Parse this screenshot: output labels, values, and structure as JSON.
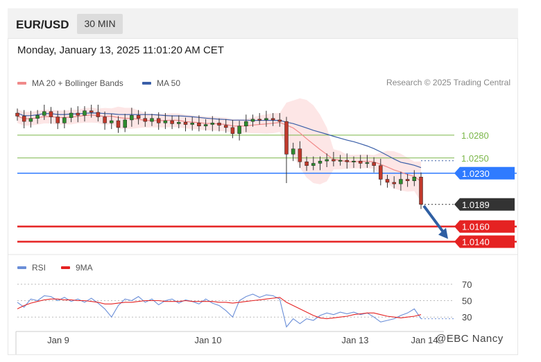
{
  "header": {
    "symbol": "EUR/USD",
    "timeframe": "30 MIN"
  },
  "datetime": "Monday, January 13, 2025 11:01:20 AM CET",
  "credit": "Research © 2025 Trading Central",
  "watermark": "@EBC Nancy",
  "colors": {
    "ma20": "#f08a8a",
    "bollinger_fill": "#fde2e2",
    "ma50": "#3a5fa8",
    "candle_up": "#2e8b2e",
    "candle_down": "#c0392b",
    "resistance": "#7ab648",
    "pivot": "#2f7bff",
    "support": "#e52222",
    "current": "#333333",
    "rsi": "#6b8fd8",
    "rsi_ma": "#e52222",
    "arrow": "#2f5fa3"
  },
  "chart_data": [
    {
      "type": "line",
      "subtype": "candlestick",
      "legend": [
        {
          "name": "MA 20 + Bollinger Bands",
          "color": "#f08a8a"
        },
        {
          "name": "MA 50",
          "color": "#3a5fa8"
        }
      ],
      "x_ticks": [
        "Jan 9",
        "Jan 10",
        "Jan 13",
        "Jan 14"
      ],
      "ylim": [
        1.0125,
        1.033
      ],
      "levels": [
        {
          "label": "1.0280",
          "value": 1.028,
          "kind": "resistance"
        },
        {
          "label": "1.0250",
          "value": 1.025,
          "kind": "resistance"
        },
        {
          "label": "1.0230",
          "value": 1.023,
          "kind": "pivot"
        },
        {
          "label": "1.0189",
          "value": 1.0189,
          "kind": "current"
        },
        {
          "label": "1.0160",
          "value": 1.016,
          "kind": "support"
        },
        {
          "label": "1.0140",
          "value": 1.014,
          "kind": "support"
        }
      ],
      "close_path": [
        1.0305,
        1.0298,
        1.0302,
        1.0306,
        1.0311,
        1.0304,
        1.0296,
        1.0303,
        1.0309,
        1.0306,
        1.0312,
        1.031,
        1.0304,
        1.0296,
        1.0299,
        1.029,
        1.03,
        1.0306,
        1.0302,
        1.0298,
        1.0302,
        1.0296,
        1.0299,
        1.0295,
        1.0297,
        1.0294,
        1.0296,
        1.0292,
        1.0294,
        1.0296,
        1.0293,
        1.029,
        1.0282,
        1.0292,
        1.0298,
        1.0301,
        1.03,
        1.0302,
        1.03,
        1.0298,
        1.0255,
        1.0262,
        1.0245,
        1.024,
        1.0243,
        1.0246,
        1.0248,
        1.0246,
        1.0247,
        1.0245,
        1.0246,
        1.0243,
        1.0244,
        1.024,
        1.0222,
        1.0218,
        1.0216,
        1.0222,
        1.022,
        1.0225,
        1.0189
      ]
    },
    {
      "type": "line",
      "legend": [
        {
          "name": "RSI",
          "color": "#6b8fd8"
        },
        {
          "name": "9MA",
          "color": "#e52222"
        }
      ],
      "y_ticks": [
        70,
        50,
        30
      ],
      "ylim": [
        15,
        80
      ],
      "rsi": [
        48,
        42,
        52,
        50,
        56,
        55,
        50,
        54,
        49,
        52,
        48,
        53,
        47,
        40,
        30,
        44,
        52,
        50,
        55,
        48,
        52,
        45,
        50,
        52,
        47,
        51,
        49,
        46,
        52,
        47,
        44,
        38,
        30,
        50,
        55,
        58,
        54,
        57,
        56,
        52,
        18,
        28,
        22,
        28,
        26,
        32,
        35,
        33,
        36,
        34,
        36,
        33,
        35,
        30,
        24,
        26,
        28,
        32,
        35,
        40,
        28
      ],
      "rsi_ma": [
        40,
        44,
        47,
        49,
        51,
        52,
        52,
        51,
        51,
        50,
        50,
        49,
        48,
        46,
        46,
        47,
        48,
        48,
        49,
        50,
        50,
        50,
        49,
        49,
        49,
        50,
        49,
        49,
        49,
        49,
        48,
        48,
        47,
        48,
        49,
        50,
        51,
        52,
        53,
        54,
        48,
        44,
        40,
        36,
        32,
        29,
        28,
        29,
        30,
        31,
        33,
        34,
        35,
        35,
        33,
        31,
        30,
        29,
        30,
        31,
        33
      ]
    }
  ]
}
